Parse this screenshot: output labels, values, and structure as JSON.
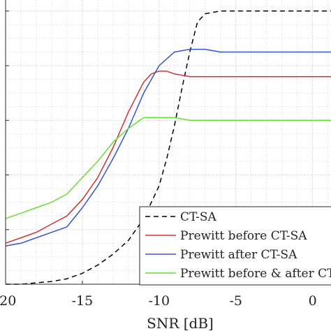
{
  "chart_data": {
    "type": "line",
    "xlabel": "SNR [dB]",
    "ylabel": "",
    "title": "",
    "xlim": [
      -20,
      1.2
    ],
    "ylim": [
      0.0,
      1.02
    ],
    "x_ticks": [
      -20,
      -15,
      -10,
      -5,
      0
    ],
    "x_tick_labels": [
      "-20",
      "-15",
      "-10",
      "-5",
      "0"
    ],
    "y_ticks": [
      0.0,
      0.2,
      0.4,
      0.6,
      0.8,
      1.0
    ],
    "grid": true,
    "minor_grid": true,
    "legend_position": "bottom-right",
    "series": [
      {
        "name": "CT-SA",
        "color": "#000000",
        "dash": "dashed",
        "x": [
          -20,
          -19,
          -18,
          -17,
          -16,
          -15,
          -14,
          -13,
          -12,
          -11,
          -10,
          -9.5,
          -9,
          -8.5,
          -8,
          -7.5,
          -7,
          -6,
          -5,
          -4,
          -3,
          -2,
          -1,
          0,
          1,
          1.2
        ],
        "y": [
          0.0,
          0.0,
          0.005,
          0.01,
          0.02,
          0.04,
          0.07,
          0.11,
          0.16,
          0.24,
          0.36,
          0.46,
          0.58,
          0.72,
          0.85,
          0.96,
          0.99,
          1.0,
          1.0,
          1.0,
          1.0,
          1.0,
          1.0,
          1.0,
          1.0,
          1.0
        ]
      },
      {
        "name": "Prewitt before CT-SA",
        "color": "#cc3333",
        "dash": "solid",
        "x": [
          -20,
          -19,
          -18,
          -17,
          -16,
          -15,
          -14,
          -13,
          -12,
          -11,
          -10.5,
          -10,
          -9.5,
          -9,
          -8,
          -7,
          -6,
          -5,
          -4,
          -3,
          -2,
          -1,
          0,
          1,
          1.2
        ],
        "y": [
          0.15,
          0.17,
          0.19,
          0.22,
          0.25,
          0.31,
          0.39,
          0.5,
          0.63,
          0.74,
          0.77,
          0.78,
          0.78,
          0.77,
          0.76,
          0.76,
          0.76,
          0.76,
          0.76,
          0.76,
          0.76,
          0.76,
          0.76,
          0.76,
          0.76
        ]
      },
      {
        "name": "Prewitt after CT-SA",
        "color": "#3355cc",
        "dash": "solid",
        "x": [
          -20,
          -19,
          -18,
          -17,
          -16,
          -15,
          -14,
          -13,
          -12,
          -11,
          -10,
          -9,
          -8,
          -7,
          -6,
          -5,
          -4,
          -3,
          -2,
          -1,
          0,
          1,
          1.2
        ],
        "y": [
          0.14,
          0.15,
          0.17,
          0.19,
          0.21,
          0.28,
          0.36,
          0.46,
          0.57,
          0.7,
          0.8,
          0.85,
          0.86,
          0.86,
          0.85,
          0.85,
          0.85,
          0.85,
          0.85,
          0.85,
          0.85,
          0.85,
          0.85
        ]
      },
      {
        "name": "Prewitt before & after CT-SA",
        "color": "#66dd33",
        "dash": "solid",
        "x": [
          -20,
          -19,
          -18,
          -17,
          -16,
          -15,
          -14,
          -13,
          -12,
          -11,
          -10,
          -9,
          -8,
          -7,
          -6,
          -5,
          -4,
          -3,
          -2,
          -1,
          0,
          1,
          1.2
        ],
        "y": [
          0.24,
          0.26,
          0.28,
          0.3,
          0.33,
          0.39,
          0.45,
          0.52,
          0.57,
          0.61,
          0.61,
          0.61,
          0.6,
          0.6,
          0.6,
          0.6,
          0.6,
          0.6,
          0.6,
          0.6,
          0.6,
          0.6,
          0.6
        ]
      }
    ]
  }
}
